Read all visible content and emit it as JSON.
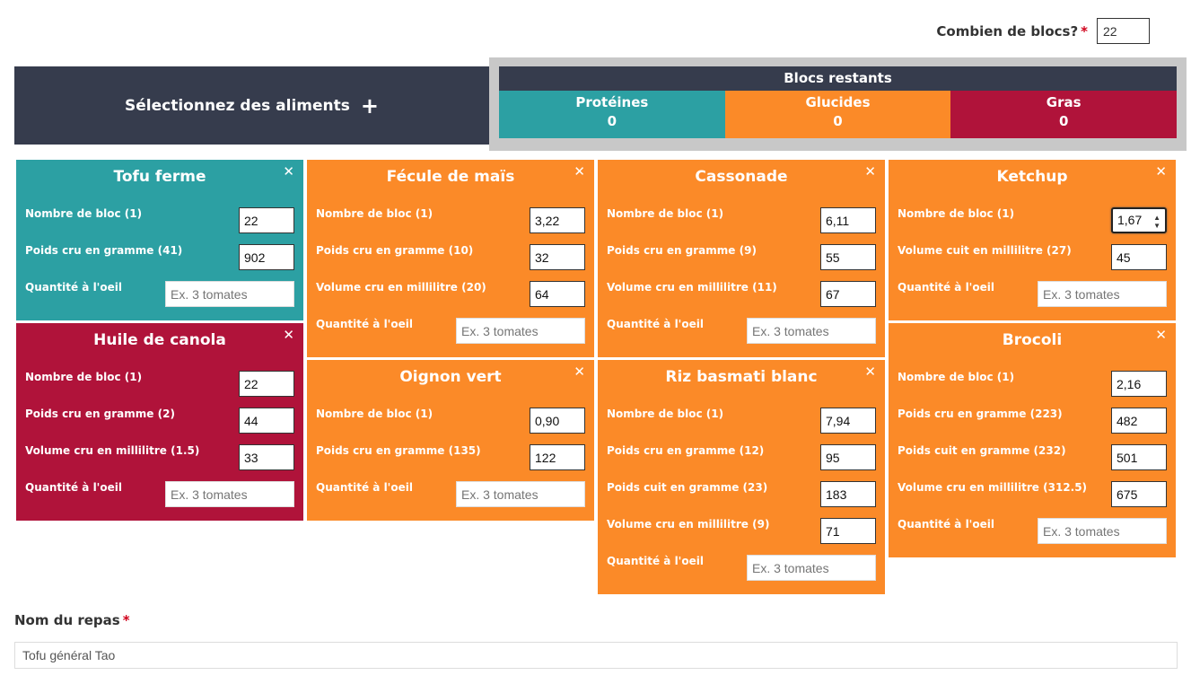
{
  "blocks": {
    "label": "Combien de blocs?",
    "required_mark": "*",
    "value": "22"
  },
  "select_foods": {
    "label": "Sélectionnez des aliments",
    "plus": "+"
  },
  "remaining": {
    "title": "Blocs restants",
    "proteins": {
      "label": "Protéines",
      "value": "0",
      "color": "#2ca0a3"
    },
    "carbs": {
      "label": "Glucides",
      "value": "0",
      "color": "#fb8a28"
    },
    "fats": {
      "label": "Gras",
      "value": "0",
      "color": "#b0133a"
    }
  },
  "placeholder_qty": "Ex. 3 tomates",
  "close_glyph": "✕",
  "cards": {
    "tofu": {
      "title": "Tofu ferme",
      "f1": {
        "label": "Nombre de bloc (1)",
        "value": "22"
      },
      "f2": {
        "label": "Poids cru en gramme (41)",
        "value": "902"
      },
      "f3": {
        "label": "Quantité à l'oeil"
      }
    },
    "canola": {
      "title": "Huile de canola",
      "f1": {
        "label": "Nombre de bloc (1)",
        "value": "22"
      },
      "f2": {
        "label": "Poids cru en gramme (2)",
        "value": "44"
      },
      "f3": {
        "label": "Volume cru en millilitre (1.5)",
        "value": "33"
      },
      "f4": {
        "label": "Quantité à l'oeil"
      }
    },
    "fecule": {
      "title": "Fécule de maïs",
      "f1": {
        "label": "Nombre de bloc (1)",
        "value": "3,22"
      },
      "f2": {
        "label": "Poids cru en gramme (10)",
        "value": "32"
      },
      "f3": {
        "label": "Volume cru en millilitre (20)",
        "value": "64"
      },
      "f4": {
        "label": "Quantité à l'oeil"
      }
    },
    "oignon": {
      "title": "Oignon vert",
      "f1": {
        "label": "Nombre de bloc (1)",
        "value": "0,90"
      },
      "f2": {
        "label": "Poids cru en gramme (135)",
        "value": "122"
      },
      "f3": {
        "label": "Quantité à l'oeil"
      }
    },
    "cassonade": {
      "title": "Cassonade",
      "f1": {
        "label": "Nombre de bloc (1)",
        "value": "6,11"
      },
      "f2": {
        "label": "Poids cru en gramme (9)",
        "value": "55"
      },
      "f3": {
        "label": "Volume cru en millilitre (11)",
        "value": "67"
      },
      "f4": {
        "label": "Quantité à l'oeil"
      }
    },
    "riz": {
      "title": "Riz basmati blanc",
      "f1": {
        "label": "Nombre de bloc (1)",
        "value": "7,94"
      },
      "f2": {
        "label": "Poids cru en gramme (12)",
        "value": "95"
      },
      "f3": {
        "label": "Poids cuit en gramme (23)",
        "value": "183"
      },
      "f4": {
        "label": "Volume cru en millilitre (9)",
        "value": "71"
      },
      "f5": {
        "label": "Quantité à l'oeil"
      }
    },
    "ketchup": {
      "title": "Ketchup",
      "f1": {
        "label": "Nombre de bloc (1)",
        "value": "1,67"
      },
      "f2": {
        "label": "Volume cuit en millilitre (27)",
        "value": "45"
      },
      "f3": {
        "label": "Quantité à l'oeil"
      }
    },
    "brocoli": {
      "title": "Brocoli",
      "f1": {
        "label": "Nombre de bloc (1)",
        "value": "2,16"
      },
      "f2": {
        "label": "Poids cru en gramme (223)",
        "value": "482"
      },
      "f3": {
        "label": "Poids cuit en gramme (232)",
        "value": "501"
      },
      "f4": {
        "label": "Volume cru en millilitre (312.5)",
        "value": "675"
      },
      "f5": {
        "label": "Quantité à l'oeil"
      }
    }
  },
  "meal": {
    "label": "Nom du repas",
    "required_mark": "*",
    "value": "Tofu général Tao"
  }
}
